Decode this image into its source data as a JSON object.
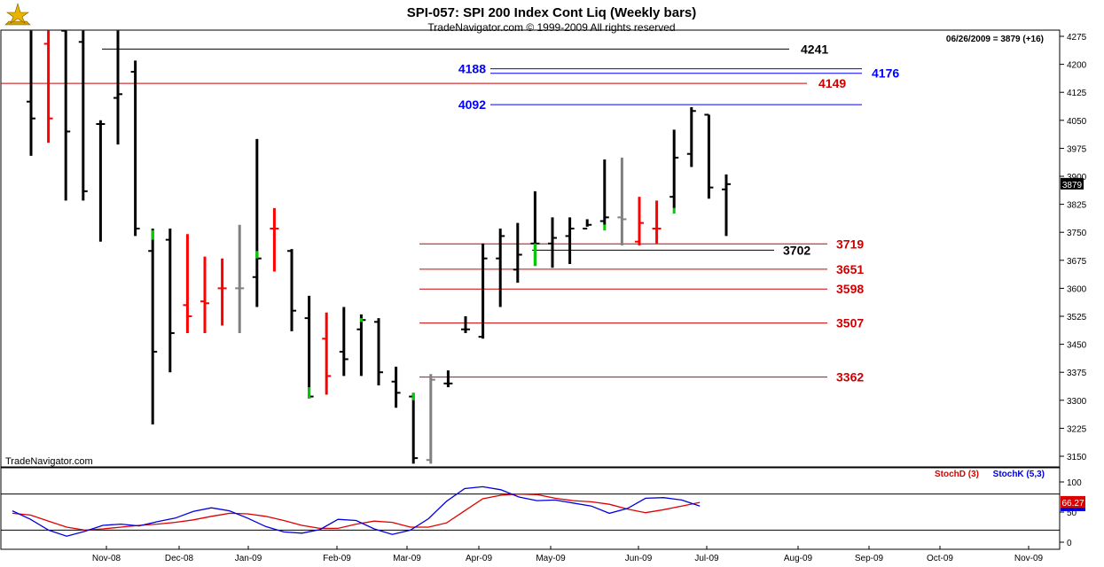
{
  "header": {
    "title": "SPI-057:  SPI 200 Index Cont Liq  (Weekly bars)",
    "copyright": "TradeNavigator.com © 1999-2009 All rights reserved",
    "last_info": "06/26/2009 = 3879 (+16)",
    "watermark": "TradeNavigator.com"
  },
  "colors": {
    "up": "#000000",
    "down": "#ff0000",
    "neutral": "#808080",
    "start": "#00cc00",
    "blue_line": "#0000ff",
    "red_line": "#cc0000",
    "stochD": "#dd0000",
    "stochK": "#0000dd"
  },
  "chart_data": [
    {
      "type": "ohlc-bar",
      "yaxis_ticks": [
        4275,
        4200,
        4125,
        4050,
        3975,
        3900,
        3825,
        3750,
        3675,
        3600,
        3525,
        3450,
        3375,
        3300,
        3225,
        3150
      ],
      "ylim": [
        3120,
        4285
      ],
      "x_labels": [
        "Nov-08",
        "Dec-08",
        "Jan-09",
        "Feb-09",
        "Mar-09",
        "Apr-09",
        "May-09",
        "Jun-09",
        "Jul-09",
        "Aug-09",
        "Sep-09",
        "Oct-09",
        "Nov-09"
      ],
      "last_value_label": "3879",
      "bars": [
        {
          "o": 4100,
          "h": 4290,
          "l": 3955,
          "c": 4055,
          "col": "up"
        },
        {
          "o": 4255,
          "h": 4290,
          "l": 3990,
          "c": 4055,
          "col": "down"
        },
        {
          "o": 4290,
          "h": 4290,
          "l": 3835,
          "c": 4020,
          "col": "up"
        },
        {
          "o": 4260,
          "h": 4290,
          "l": 3835,
          "c": 3860,
          "col": "up"
        },
        {
          "o": 4040,
          "h": 4050,
          "l": 3725,
          "c": 4040,
          "col": "up"
        },
        {
          "o": 4110,
          "h": 4290,
          "l": 3985,
          "c": 4120,
          "col": "up"
        },
        {
          "o": 4180,
          "h": 4210,
          "l": 3740,
          "c": 3760,
          "col": "up"
        },
        {
          "o": 3700,
          "h": 3760,
          "l": 3235,
          "c": 3430,
          "col": "up"
        },
        {
          "o": 3730,
          "h": 3760,
          "l": 3375,
          "c": 3480,
          "col": "up"
        },
        {
          "o": 3555,
          "h": 3745,
          "l": 3480,
          "c": 3525,
          "col": "down"
        },
        {
          "o": 3565,
          "h": 3685,
          "l": 3480,
          "c": 3560,
          "col": "down"
        },
        {
          "o": 3600,
          "h": 3680,
          "l": 3500,
          "c": 3600,
          "col": "down"
        },
        {
          "o": 3600,
          "h": 3770,
          "l": 3480,
          "c": 3600,
          "col": "neutral"
        },
        {
          "o": 3630,
          "h": 4000,
          "l": 3550,
          "c": 3680,
          "col": "up"
        },
        {
          "o": 3760,
          "h": 3815,
          "l": 3645,
          "c": 3760,
          "col": "down"
        },
        {
          "o": 3700,
          "h": 3705,
          "l": 3485,
          "c": 3540,
          "col": "up"
        },
        {
          "o": 3520,
          "h": 3580,
          "l": 3305,
          "c": 3310,
          "col": "up"
        },
        {
          "o": 3465,
          "h": 3535,
          "l": 3315,
          "c": 3365,
          "col": "down"
        },
        {
          "o": 3430,
          "h": 3550,
          "l": 3365,
          "c": 3410,
          "col": "up"
        },
        {
          "o": 3490,
          "h": 3530,
          "l": 3365,
          "c": 3515,
          "col": "up"
        },
        {
          "o": 3510,
          "h": 3520,
          "l": 3340,
          "c": 3375,
          "col": "up"
        },
        {
          "o": 3350,
          "h": 3390,
          "l": 3280,
          "c": 3320,
          "col": "up"
        },
        {
          "o": 3310,
          "h": 3320,
          "l": 3130,
          "c": 3145,
          "col": "up"
        },
        {
          "o": 3140,
          "h": 3370,
          "l": 3130,
          "c": 3355,
          "col": "neutral"
        },
        {
          "o": 3345,
          "h": 3380,
          "l": 3335,
          "c": 3345,
          "col": "up"
        },
        {
          "o": 3490,
          "h": 3525,
          "l": 3480,
          "c": 3490,
          "col": "up"
        },
        {
          "o": 3470,
          "h": 3720,
          "l": 3465,
          "c": 3680,
          "col": "up"
        },
        {
          "o": 3680,
          "h": 3760,
          "l": 3550,
          "c": 3740,
          "col": "up"
        },
        {
          "o": 3650,
          "h": 3775,
          "l": 3615,
          "c": 3690,
          "col": "up"
        },
        {
          "o": 3720,
          "h": 3860,
          "l": 3660,
          "c": 3720,
          "col": "up"
        },
        {
          "o": 3720,
          "h": 3790,
          "l": 3655,
          "c": 3735,
          "col": "up"
        },
        {
          "o": 3740,
          "h": 3790,
          "l": 3665,
          "c": 3760,
          "col": "up"
        },
        {
          "o": 3760,
          "h": 3785,
          "l": 3765,
          "c": 3770,
          "col": "up"
        },
        {
          "o": 3780,
          "h": 3945,
          "l": 3770,
          "c": 3790,
          "col": "up"
        },
        {
          "o": 3790,
          "h": 3950,
          "l": 3715,
          "c": 3785,
          "col": "neutral"
        },
        {
          "o": 3725,
          "h": 3845,
          "l": 3715,
          "c": 3775,
          "col": "down"
        },
        {
          "o": 3760,
          "h": 3835,
          "l": 3720,
          "c": 3760,
          "col": "down"
        },
        {
          "o": 3845,
          "h": 4025,
          "l": 3815,
          "c": 3950,
          "col": "up"
        },
        {
          "o": 3960,
          "h": 4085,
          "l": 3925,
          "c": 4075,
          "col": "up"
        },
        {
          "o": 4065,
          "h": 4065,
          "l": 3840,
          "c": 3870,
          "col": "up"
        },
        {
          "o": 3865,
          "h": 3905,
          "l": 3740,
          "c": 3879,
          "col": "up"
        }
      ]
    },
    {
      "type": "horizontal-levels",
      "levels": [
        {
          "value": 4241,
          "label": "4241",
          "color": "#000000"
        },
        {
          "value": 4188,
          "label": "4188",
          "color": "#0000ff"
        },
        {
          "value": 4176,
          "label": "4176",
          "color": "#0000ff"
        },
        {
          "value": 4149,
          "label": "4149",
          "color": "#cc0000"
        },
        {
          "value": 4092,
          "label": "4092",
          "color": "#0000ff"
        },
        {
          "value": 3719,
          "label": "3719",
          "color": "#cc0000"
        },
        {
          "value": 3702,
          "label": "3702",
          "color": "#000000"
        },
        {
          "value": 3651,
          "label": "3651",
          "color": "#cc0000"
        },
        {
          "value": 3598,
          "label": "3598",
          "color": "#cc0000"
        },
        {
          "value": 3507,
          "label": "3507",
          "color": "#cc0000"
        },
        {
          "value": 3362,
          "label": "3362",
          "color": "#cc0000"
        }
      ]
    },
    {
      "type": "line",
      "ylim": [
        0,
        105
      ],
      "yaxis_ticks": [
        100,
        50,
        0
      ],
      "reference_lines": [
        80,
        20
      ],
      "last_value_label": "66.27",
      "series": [
        {
          "name": "StochD (3)",
          "color": "#dd0000",
          "values": [
            48,
            45,
            35,
            25,
            20,
            22,
            25,
            28,
            30,
            33,
            37,
            43,
            48,
            47,
            43,
            36,
            28,
            23,
            23,
            30,
            35,
            33,
            25,
            25,
            32,
            52,
            72,
            78,
            80,
            79,
            73,
            69,
            67,
            63,
            55,
            49,
            54,
            60,
            66
          ]
        },
        {
          "name": "StochK (5,3)",
          "color": "#0000dd",
          "values": [
            52,
            38,
            20,
            10,
            18,
            28,
            30,
            27,
            34,
            40,
            51,
            57,
            52,
            40,
            26,
            17,
            15,
            21,
            38,
            36,
            22,
            13,
            20,
            39,
            68,
            89,
            92,
            87,
            75,
            69,
            70,
            65,
            60,
            48,
            56,
            73,
            74,
            70,
            60
          ]
        }
      ]
    }
  ]
}
